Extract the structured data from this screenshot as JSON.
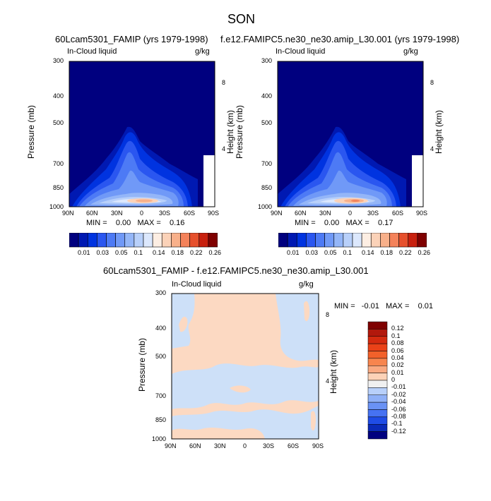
{
  "page_title": "SON",
  "panels": {
    "top_left_title": "60Lcam5301_FAMIP (yrs 1979-1998)",
    "top_right_title": "f.e12.FAMIPC5.ne30_ne30.amip_L30.001 (yrs 1979-1998)",
    "diff_title": "60Lcam5301_FAMIP - f.e12.FAMIPC5.ne30_ne30.amip_L30.001"
  },
  "stats": {
    "left": "MIN =    0.00   MAX =    0.16",
    "right": "MIN =    0.00   MAX =    0.17",
    "diff": "MIN =   -0.01   MAX =    0.01"
  },
  "chart_data": [
    {
      "type": "heatmap",
      "id": "model-a",
      "title": "60Lcam5301_FAMIP (yrs 1979-1998)",
      "variable_label": "In-Cloud liquid",
      "units": "g/kg",
      "xlabel": "",
      "ylabel": "Pressure (mb)",
      "ylabel_right": "Height (km)",
      "x_ticks": [
        "90N",
        "60N",
        "30N",
        "0",
        "30S",
        "60S",
        "90S"
      ],
      "y_ticks": [
        "300",
        "400",
        "500",
        "700",
        "850",
        "1000"
      ],
      "y_ticks_right": [
        "8",
        "4"
      ],
      "min": 0.0,
      "max": 0.16
    },
    {
      "type": "heatmap",
      "id": "model-b",
      "title": "f.e12.FAMIPC5.ne30_ne30.amip_L30.001 (yrs 1979-1998)",
      "variable_label": "In-Cloud liquid",
      "units": "g/kg",
      "xlabel": "",
      "ylabel": "Pressure (mb)",
      "ylabel_right": "Height (km)",
      "x_ticks": [
        "90N",
        "60N",
        "30N",
        "0",
        "30S",
        "60S",
        "90S"
      ],
      "y_ticks": [
        "300",
        "400",
        "500",
        "700",
        "850",
        "1000"
      ],
      "y_ticks_right": [
        "8",
        "4"
      ],
      "min": 0.0,
      "max": 0.17
    },
    {
      "type": "heatmap",
      "id": "difference",
      "title": "60Lcam5301_FAMIP - f.e12.FAMIPC5.ne30_ne30.amip_L30.001",
      "variable_label": "In-Cloud liquid",
      "units": "g/kg",
      "xlabel": "",
      "ylabel": "Pressure (mb)",
      "ylabel_right": "Height (km)",
      "x_ticks": [
        "90N",
        "60N",
        "30N",
        "0",
        "30S",
        "60S",
        "90S"
      ],
      "y_ticks": [
        "300",
        "400",
        "500",
        "700",
        "850",
        "1000"
      ],
      "y_ticks_right": [
        "8",
        "4"
      ],
      "min": -0.01,
      "max": 0.01
    }
  ],
  "colorbar_main": {
    "labels": [
      "0.01",
      "0.03",
      "0.05",
      "0.1",
      "0.14",
      "0.18",
      "0.22",
      "0.26"
    ],
    "colors": [
      "#00007f",
      "#0019b2",
      "#0033e0",
      "#2a56f0",
      "#4d7af5",
      "#7099f7",
      "#94b6f8",
      "#b8d0fa",
      "#dce8fd",
      "#fdeee3",
      "#fbd2b8",
      "#f8b08a",
      "#f4825a",
      "#e6502c",
      "#c8200e",
      "#7f0000"
    ]
  },
  "colorbar_diff": {
    "labels": [
      "0.12",
      "0.1",
      "0.08",
      "0.06",
      "0.04",
      "0.02",
      "0.01",
      "0",
      "-0.01",
      "-0.02",
      "-0.04",
      "-0.06",
      "-0.08",
      "-0.1",
      "-0.12"
    ],
    "colors": [
      "#7f0000",
      "#b2180c",
      "#d42a0f",
      "#ea4218",
      "#f2612a",
      "#f7854e",
      "#f9a981",
      "#fcd2b7",
      "#f0f0f0",
      "#b8d0fa",
      "#8fb0f7",
      "#6a92f5",
      "#4672f2",
      "#1f4ce6",
      "#0a2ab8",
      "#00007f"
    ]
  }
}
